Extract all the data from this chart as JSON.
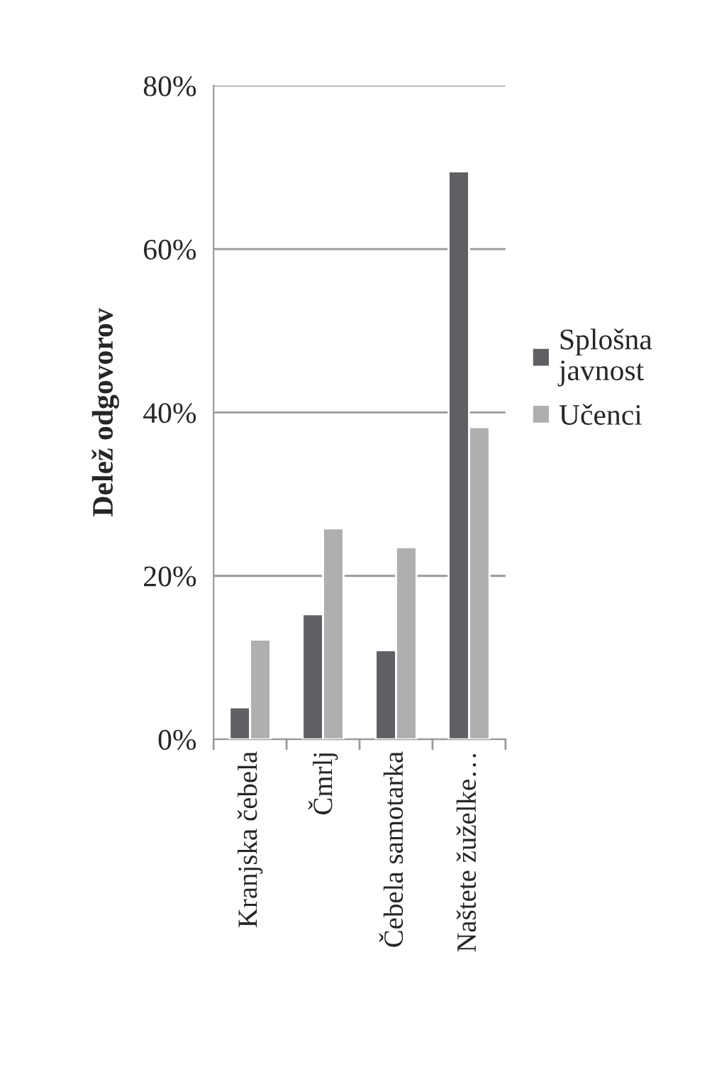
{
  "chart_data": {
    "type": "bar",
    "ylabel": "Delež odgovorov",
    "categories": [
      "Kranjska čebela",
      "Čmrlj",
      "Čebela samotarka",
      "Naštete žuželke…"
    ],
    "series": [
      {
        "name": "Splošna javnost",
        "color": "#5f6064",
        "values": [
          3.9,
          15.3,
          10.9,
          69.5
        ]
      },
      {
        "name": "Učenci",
        "color": "#aeafb1",
        "values": [
          12.2,
          25.8,
          23.5,
          38.2
        ]
      }
    ],
    "ylim": [
      0,
      80
    ],
    "yticks": [
      {
        "value": 0,
        "label": "0%"
      },
      {
        "value": 20,
        "label": "20%"
      },
      {
        "value": 40,
        "label": "40%"
      },
      {
        "value": 60,
        "label": "60%"
      },
      {
        "value": 80,
        "label": "80%"
      }
    ],
    "grid": "y",
    "legend": "right"
  }
}
